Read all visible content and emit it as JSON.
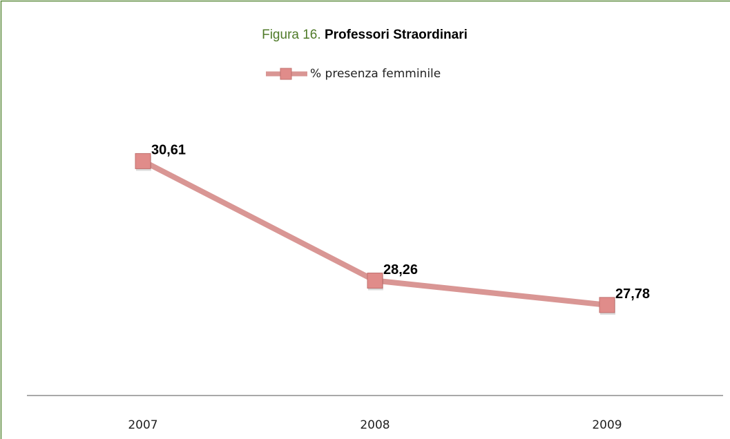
{
  "chart_data": {
    "type": "line",
    "figure_label": "Figura 16.",
    "title": "Professori Straordinari",
    "categories": [
      "2007",
      "2008",
      "2009"
    ],
    "series": [
      {
        "name": "% presenza femminile",
        "color": "#d99694",
        "marker_color": "#e08c8a",
        "values": [
          30.61,
          28.26,
          27.78
        ],
        "value_labels": [
          "30,61",
          "28,26",
          "27,78"
        ]
      }
    ],
    "ylim": [
      26,
      32
    ],
    "grid": false
  }
}
